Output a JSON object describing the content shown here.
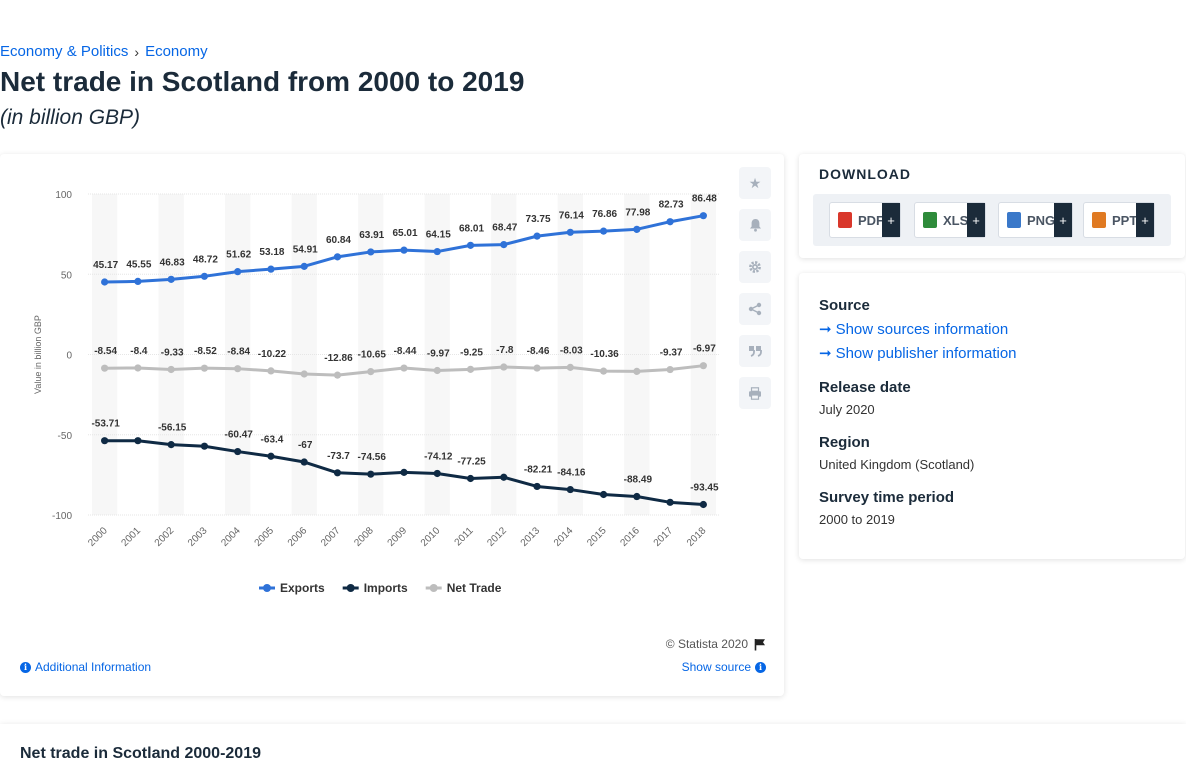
{
  "breadcrumb": {
    "items": [
      "Economy & Politics",
      "Economy"
    ],
    "separator": "›"
  },
  "page": {
    "title": "Net trade in Scotland from 2000 to 2019",
    "subtitle": "(in billion GBP)"
  },
  "chart_data": {
    "type": "line",
    "categories": [
      "2000",
      "2001",
      "2002",
      "2003",
      "2004",
      "2005",
      "2006",
      "2007",
      "2008",
      "2009",
      "2010",
      "2011",
      "2012",
      "2013",
      "2014",
      "2015",
      "2016",
      "2017",
      "2018"
    ],
    "ylabel": "Value in billion GBP",
    "ylim": [
      -100,
      100
    ],
    "yticks": [
      100,
      50,
      0,
      -50,
      -100
    ],
    "grid": true,
    "legend_position": "bottom",
    "series": [
      {
        "name": "Exports",
        "color": "#2f72d8",
        "values": [
          45.17,
          45.55,
          46.83,
          48.72,
          51.62,
          53.18,
          54.91,
          60.84,
          63.91,
          65.01,
          64.15,
          68.01,
          68.47,
          73.75,
          76.14,
          76.86,
          77.98,
          82.73,
          86.48
        ]
      },
      {
        "name": "Imports",
        "color": "#0f2a44",
        "values": [
          -53.71,
          -53.71,
          -56.15,
          -57.14,
          -60.47,
          -63.4,
          -67,
          -73.7,
          -74.56,
          -73.45,
          -74.12,
          -77.25,
          -76.47,
          -82.21,
          -84.16,
          -87.22,
          -88.49,
          -92.1,
          -93.45
        ]
      },
      {
        "name": "Net Trade",
        "color": "#bdbdbd",
        "values": [
          -8.54,
          -8.4,
          -9.33,
          -8.52,
          -8.84,
          -10.22,
          -12.16,
          -12.86,
          -10.65,
          -8.44,
          -9.97,
          -9.25,
          -7.8,
          -8.46,
          -8.03,
          -10.36,
          -10.51,
          -9.37,
          -6.97
        ]
      }
    ],
    "data_labels": {
      "Exports": [
        "45.17",
        "45.55",
        "46.83",
        "48.72",
        "51.62",
        "53.18",
        "54.91",
        "60.84",
        "63.91",
        "65.01",
        "64.15",
        "68.01",
        "68.47",
        "73.75",
        "76.14",
        "76.86",
        "77.98",
        "82.73",
        "86.48"
      ],
      "Imports": [
        "-53.71",
        "",
        "-56.15",
        "",
        "-60.47",
        "-63.4",
        "-67",
        "-73.7",
        "-74.56",
        "",
        "-74.12",
        "-77.25",
        "",
        "-82.21",
        "-84.16",
        "",
        "-88.49",
        "",
        "-93.45"
      ],
      "Net Trade": [
        "-8.54",
        "-8.4",
        "-9.33",
        "-8.52",
        "-8.84",
        "-10.22",
        "",
        "-12.86",
        "-10.65",
        "-8.44",
        "-9.97",
        "-9.25",
        "-7.8",
        "-8.46",
        "-8.03",
        "-10.36",
        "",
        "-9.37",
        "-6.97"
      ]
    }
  },
  "chart_footer": {
    "credit": "© Statista 2020",
    "additional_info": "Additional Information",
    "show_source": "Show source"
  },
  "download": {
    "title": "DOWNLOAD",
    "buttons": [
      {
        "label": "PDF",
        "color": "#d9372b",
        "icon": "pdf-file-icon"
      },
      {
        "label": "XLS",
        "color": "#2e8b3a",
        "icon": "xls-file-icon"
      },
      {
        "label": "PNG",
        "color": "#3a78c9",
        "icon": "png-file-icon"
      },
      {
        "label": "PPT",
        "color": "#e07a22",
        "icon": "ppt-file-icon"
      }
    ],
    "plus": "+"
  },
  "info": {
    "source_label": "Source",
    "show_sources": "Show sources information",
    "show_publisher": "Show publisher information",
    "release_label": "Release date",
    "release_value": "July 2020",
    "region_label": "Region",
    "region_value": "United Kingdom (Scotland)",
    "period_label": "Survey time period",
    "period_value": "2000 to 2019"
  },
  "bottom": {
    "title": "Net trade in Scotland 2000-2019"
  },
  "colors": {
    "accent": "#0666e5",
    "navy": "#1b2b3a"
  }
}
